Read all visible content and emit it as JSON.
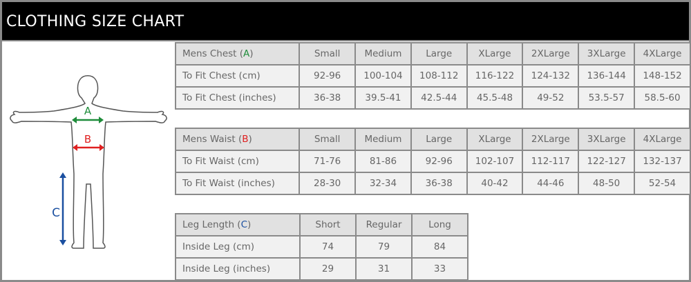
{
  "title": "CLOTHING SIZE CHART",
  "colors": {
    "A": "#1e8c3a",
    "B": "#e02020",
    "C": "#1a4fa0"
  },
  "figure": {
    "labels": {
      "A": "A",
      "B": "B",
      "C": "C"
    }
  },
  "chest": {
    "header": {
      "prefix": "Mens Chest (",
      "letter": "A",
      "suffix": ")",
      "sizes": [
        "Small",
        "Medium",
        "Large",
        "XLarge",
        "2XLarge",
        "3XLarge",
        "4XLarge"
      ]
    },
    "rows": [
      {
        "label": "To Fit Chest (cm)",
        "values": [
          "92-96",
          "100-104",
          "108-112",
          "116-122",
          "124-132",
          "136-144",
          "148-152"
        ]
      },
      {
        "label": "To Fit Chest (inches)",
        "values": [
          "36-38",
          "39.5-41",
          "42.5-44",
          "45.5-48",
          "49-52",
          "53.5-57",
          "58.5-60"
        ]
      }
    ]
  },
  "waist": {
    "header": {
      "prefix": "Mens Waist (",
      "letter": "B",
      "suffix": ")",
      "sizes": [
        "Small",
        "Medium",
        "Large",
        "XLarge",
        "2XLarge",
        "3XLarge",
        "4XLarge"
      ]
    },
    "rows": [
      {
        "label": "To Fit Waist (cm)",
        "values": [
          "71-76",
          "81-86",
          "92-96",
          "102-107",
          "112-117",
          "122-127",
          "132-137"
        ]
      },
      {
        "label": "To Fit Waist (inches)",
        "values": [
          "28-30",
          "32-34",
          "36-38",
          "40-42",
          "44-46",
          "48-50",
          "52-54"
        ]
      }
    ]
  },
  "leg": {
    "header": {
      "prefix": "Leg Length (",
      "letter": "C",
      "suffix": ")",
      "sizes": [
        "Short",
        "Regular",
        "Long"
      ]
    },
    "rows": [
      {
        "label": "Inside Leg (cm)",
        "values": [
          "74",
          "79",
          "84"
        ]
      },
      {
        "label": "Inside Leg (inches)",
        "values": [
          "29",
          "31",
          "33"
        ]
      }
    ]
  }
}
